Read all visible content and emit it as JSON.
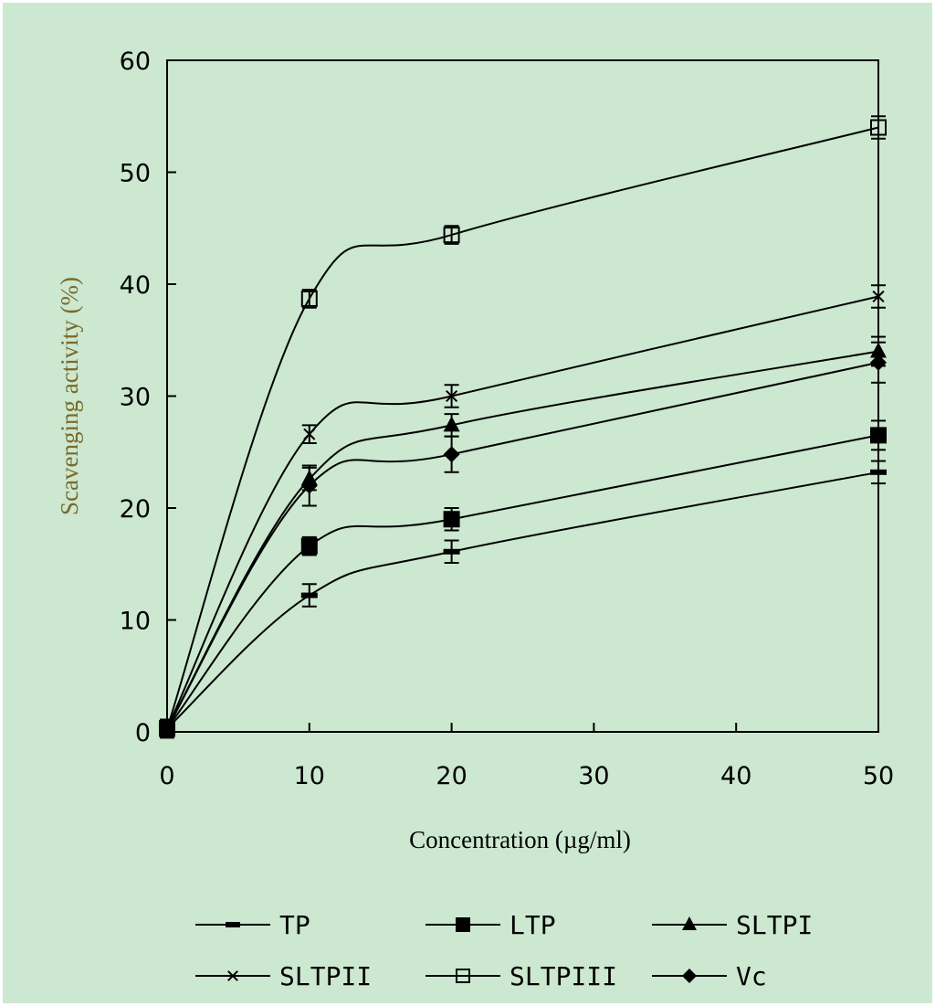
{
  "chart_data": {
    "type": "line",
    "title": "",
    "xlabel": "Concentration (µg/ml)",
    "ylabel": "Scavenging activity  (%)",
    "xlim": [
      0,
      50
    ],
    "ylim": [
      0,
      60
    ],
    "xticks": [
      "0",
      "10",
      "20",
      "30",
      "40",
      "50"
    ],
    "yticks": [
      "0",
      "10",
      "20",
      "30",
      "40",
      "50",
      "60"
    ],
    "x": [
      0,
      10,
      20,
      50
    ],
    "legend_position": "bottom",
    "colors": {
      "background": "#cce8d0",
      "axis_label": "#7a6a2a",
      "line": "#000000"
    },
    "series": [
      {
        "name": "TP",
        "marker": "dash",
        "values": [
          0.3,
          12.2,
          16.1,
          23.2
        ],
        "errors": [
          0.8,
          1.0,
          1.0,
          1.0
        ]
      },
      {
        "name": "LTP",
        "marker": "filled-square",
        "values": [
          0.3,
          16.6,
          19.0,
          26.5
        ],
        "errors": [
          0.8,
          0.8,
          1.0,
          1.3
        ]
      },
      {
        "name": "SLTPI",
        "marker": "filled-triangle",
        "values": [
          0.3,
          22.6,
          27.4,
          34.0
        ],
        "errors": [
          0.8,
          1.0,
          1.0,
          1.3
        ]
      },
      {
        "name": "SLTPII",
        "marker": "x",
        "values": [
          0.3,
          26.6,
          30.0,
          38.9
        ],
        "errors": [
          0.8,
          0.8,
          1.0,
          1.0
        ]
      },
      {
        "name": "SLTPIII",
        "marker": "open-square",
        "values": [
          0.3,
          38.7,
          44.4,
          54.0
        ],
        "errors": [
          0.8,
          0.8,
          0.8,
          1.0
        ]
      },
      {
        "name": "Vc",
        "marker": "filled-diamond",
        "values": [
          0.3,
          22.0,
          24.8,
          33.0
        ],
        "errors": [
          0.8,
          1.8,
          1.6,
          1.8
        ]
      }
    ]
  }
}
